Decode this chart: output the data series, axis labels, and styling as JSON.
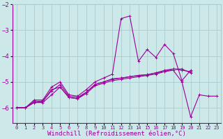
{
  "background_color": "#cce8e8",
  "grid_color": "#aacccc",
  "line_color": "#990099",
  "xlabel": "Windchill (Refroidissement éolien,°C)",
  "xlabel_fontsize": 6.5,
  "xtick_fontsize": 5.0,
  "ytick_fontsize": 6.5,
  "xlim": [
    -0.5,
    23.5
  ],
  "ylim": [
    -6.6,
    -2.2
  ],
  "yticks": [
    -6,
    -5,
    -4,
    -3,
    -2
  ],
  "xticks": [
    0,
    1,
    2,
    3,
    4,
    5,
    6,
    7,
    8,
    9,
    10,
    11,
    12,
    13,
    14,
    15,
    16,
    17,
    18,
    19,
    20,
    21,
    22,
    23
  ],
  "series": [
    [
      -6.0,
      -6.0,
      -5.8,
      -5.8,
      -5.5,
      -5.2,
      -5.6,
      -5.65,
      -5.45,
      -5.15,
      -5.05,
      -4.95,
      -4.9,
      -4.85,
      -4.8,
      -4.75,
      -4.7,
      -4.6,
      -4.5,
      -4.55,
      -4.6,
      null,
      null,
      null
    ],
    [
      -6.0,
      -6.0,
      -5.8,
      -5.75,
      -5.35,
      -5.1,
      -5.55,
      -5.6,
      -5.4,
      -5.1,
      -5.0,
      -4.88,
      -4.85,
      -4.8,
      -4.75,
      -4.72,
      -4.65,
      -4.55,
      -4.5,
      -4.5,
      -4.65,
      null,
      null,
      null
    ],
    [
      -6.0,
      -6.0,
      -5.7,
      -5.7,
      -5.2,
      -5.0,
      -5.5,
      -5.55,
      -5.3,
      -5.0,
      -4.85,
      -4.7,
      -2.55,
      -2.45,
      -4.2,
      -3.75,
      -4.05,
      -3.55,
      -3.9,
      -4.95,
      -4.55,
      null,
      null,
      null
    ],
    [
      -6.0,
      -6.0,
      -5.75,
      -5.75,
      -5.3,
      -5.2,
      -5.6,
      -5.65,
      -5.4,
      -5.1,
      -5.0,
      -4.9,
      -4.85,
      -4.8,
      -4.75,
      -4.72,
      -4.65,
      -4.6,
      -4.55,
      -5.0,
      -6.35,
      -5.5,
      -5.55,
      -5.55
    ]
  ]
}
